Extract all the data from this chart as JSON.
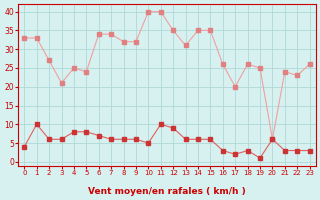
{
  "x": [
    0,
    1,
    2,
    3,
    4,
    5,
    6,
    7,
    8,
    9,
    10,
    11,
    12,
    13,
    14,
    15,
    16,
    17,
    18,
    19,
    20,
    21,
    22,
    23
  ],
  "y_mean": [
    4,
    10,
    6,
    6,
    8,
    8,
    7,
    6,
    6,
    6,
    5,
    10,
    9,
    6,
    6,
    6,
    3,
    2,
    3,
    1,
    6,
    3,
    3,
    3
  ],
  "y_gust": [
    33,
    33,
    27,
    21,
    25,
    24,
    34,
    34,
    32,
    32,
    40,
    40,
    35,
    31,
    35,
    35,
    26,
    20,
    26,
    25,
    6,
    24,
    23,
    26
  ],
  "bg_color": "#d7f0f0",
  "grid_color": "#b0d8d8",
  "line_color_mean": "#e06060",
  "line_color_gust": "#f0a0a0",
  "marker_color_mean": "#cc3333",
  "marker_color_gust": "#e08080",
  "xlabel": "Vent moyen/en rafales ( km/h )",
  "xlabel_color": "#cc0000",
  "ylabel_values": [
    0,
    5,
    10,
    15,
    20,
    25,
    30,
    35,
    40
  ],
  "ylim": [
    -1,
    42
  ],
  "xlim": [
    -0.5,
    23.5
  ],
  "tick_color": "#cc0000",
  "spine_color": "#cc0000",
  "title_color": "#cc0000"
}
